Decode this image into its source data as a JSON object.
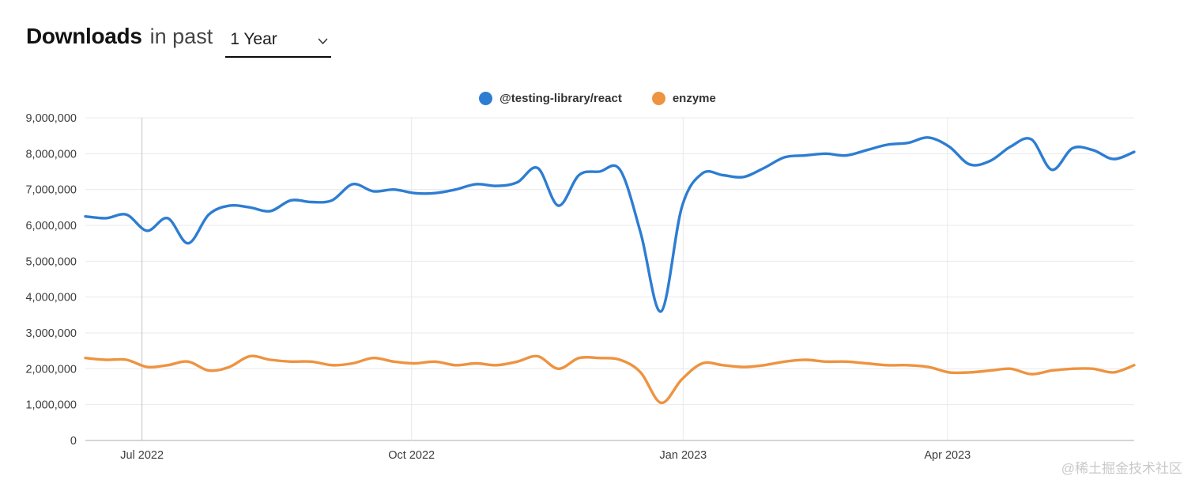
{
  "header": {
    "title_bold": "Downloads",
    "title_rest": "in past",
    "range_select": {
      "value": "1 Year"
    }
  },
  "watermark": "@稀土掘金技术社区",
  "chart_data": {
    "type": "line",
    "title": "Downloads in past 1 Year",
    "legend_position": "top",
    "grid": true,
    "y_axis": {
      "min": 0,
      "max": 9000000,
      "step": 1000000,
      "tick_labels": [
        "0",
        "1,000,000",
        "2,000,000",
        "3,000,000",
        "4,000,000",
        "5,000,000",
        "6,000,000",
        "7,000,000",
        "8,000,000",
        "9,000,000"
      ]
    },
    "x_axis": {
      "labels": [
        {
          "text": "Jul 2022",
          "pos": 0.054,
          "grid_color": "#c4c4c4"
        },
        {
          "text": "Oct 2022",
          "pos": 0.311,
          "grid_color": "#e9e9e9"
        },
        {
          "text": "Jan 2023",
          "pos": 0.57,
          "grid_color": "#e9e9e9"
        },
        {
          "text": "Apr 2023",
          "pos": 0.822,
          "grid_color": "#e9e9e9"
        }
      ]
    },
    "series": [
      {
        "name": "@testing-library/react",
        "color": "#2d7dd2",
        "values": [
          6250000,
          6200000,
          6300000,
          5850000,
          6200000,
          5500000,
          6300000,
          6550000,
          6500000,
          6400000,
          6700000,
          6650000,
          6700000,
          7150000,
          6950000,
          7000000,
          6900000,
          6900000,
          7000000,
          7150000,
          7100000,
          7200000,
          7600000,
          6550000,
          7400000,
          7500000,
          7550000,
          5800000,
          3600000,
          6500000,
          7450000,
          7400000,
          7350000,
          7600000,
          7900000,
          7950000,
          8000000,
          7950000,
          8100000,
          8250000,
          8300000,
          8450000,
          8200000,
          7700000,
          7800000,
          8200000,
          8400000,
          7550000,
          8150000,
          8100000,
          7850000,
          8050000
        ]
      },
      {
        "name": "enzyme",
        "color": "#ee9340",
        "values": [
          2300000,
          2250000,
          2250000,
          2050000,
          2100000,
          2200000,
          1950000,
          2050000,
          2350000,
          2250000,
          2200000,
          2200000,
          2100000,
          2150000,
          2300000,
          2200000,
          2150000,
          2200000,
          2100000,
          2150000,
          2100000,
          2200000,
          2350000,
          2000000,
          2300000,
          2300000,
          2250000,
          1900000,
          1050000,
          1700000,
          2150000,
          2100000,
          2050000,
          2100000,
          2200000,
          2250000,
          2200000,
          2200000,
          2150000,
          2100000,
          2100000,
          2050000,
          1900000,
          1900000,
          1950000,
          2000000,
          1850000,
          1950000,
          2000000,
          2000000,
          1900000,
          2100000
        ]
      }
    ],
    "style": {
      "grid_color": "#e9e9e9",
      "baseline_color": "#ababab",
      "axis_label_color": "#3d3d3d",
      "line_width": 3.4
    }
  }
}
